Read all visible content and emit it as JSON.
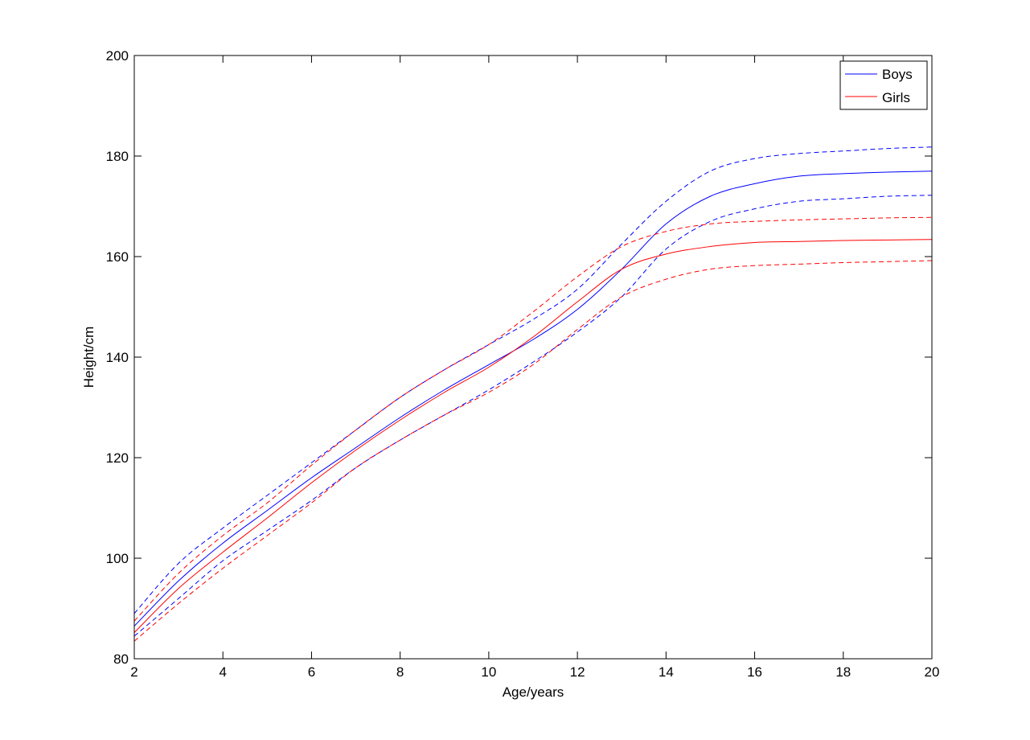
{
  "chart_data": {
    "type": "line",
    "xlabel": "Age/years",
    "ylabel": "Height/cm",
    "xlim": [
      2,
      20
    ],
    "ylim": [
      80,
      200
    ],
    "xticks": [
      2,
      4,
      6,
      8,
      10,
      12,
      14,
      16,
      18,
      20
    ],
    "yticks": [
      80,
      100,
      120,
      140,
      160,
      180,
      200
    ],
    "grid": false,
    "legend_position": "top-right",
    "legend": [
      {
        "label": "Boys",
        "color": "#0000ff"
      },
      {
        "label": "Girls",
        "color": "#ff0000"
      }
    ],
    "x": [
      2,
      3,
      4,
      5,
      6,
      7,
      8,
      9,
      10,
      11,
      12,
      13,
      14,
      15,
      16,
      17,
      18,
      19,
      20
    ],
    "series": [
      {
        "name": "Boys",
        "kind": "median",
        "style": "solid",
        "color": "#0000ff",
        "values": [
          86.5,
          95.5,
          103,
          109.5,
          116,
          122,
          128,
          133.5,
          138.5,
          143.5,
          149.5,
          157.5,
          166.5,
          172,
          174.5,
          176,
          176.5,
          176.8,
          177
        ]
      },
      {
        "name": "Boys",
        "kind": "upper",
        "style": "dashed",
        "color": "#0000ff",
        "values": [
          89,
          99,
          106,
          112.5,
          119,
          125.5,
          132,
          137.5,
          142.5,
          147.5,
          153.5,
          162.5,
          171,
          177,
          179.5,
          180.5,
          181,
          181.5,
          181.8
        ]
      },
      {
        "name": "Boys",
        "kind": "lower",
        "style": "dashed",
        "color": "#0000ff",
        "values": [
          84.5,
          92,
          99.5,
          105.5,
          111.5,
          118,
          123.5,
          128.5,
          133.5,
          139,
          145,
          152,
          161.5,
          167,
          169.5,
          171,
          171.5,
          172,
          172.2
        ]
      },
      {
        "name": "Girls",
        "kind": "median",
        "style": "solid",
        "color": "#ff0000",
        "values": [
          85.2,
          94,
          101.2,
          108,
          115,
          121.5,
          127.5,
          133,
          138,
          144,
          151,
          157.5,
          160.5,
          162,
          162.8,
          163,
          163.2,
          163.3,
          163.4
        ]
      },
      {
        "name": "Girls",
        "kind": "upper",
        "style": "dashed",
        "color": "#ff0000",
        "values": [
          87.5,
          97,
          104.5,
          111,
          118.5,
          125.5,
          132,
          137.5,
          142.5,
          149,
          156,
          162,
          165,
          166.5,
          167,
          167.3,
          167.5,
          167.7,
          167.8
        ]
      },
      {
        "name": "Girls",
        "kind": "lower",
        "style": "dashed",
        "color": "#ff0000",
        "values": [
          83.5,
          91,
          98,
          104.5,
          111,
          118,
          123.5,
          128.5,
          133,
          138.5,
          145.5,
          152,
          155.5,
          157.5,
          158.2,
          158.5,
          158.8,
          159,
          159.2
        ]
      }
    ]
  }
}
